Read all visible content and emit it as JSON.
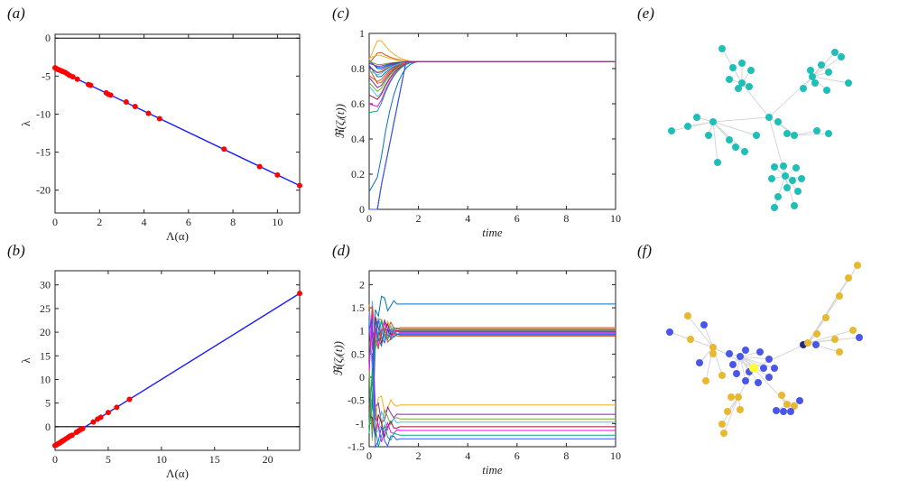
{
  "panel_labels": {
    "a": "(a)",
    "b": "(b)",
    "c": "(c)",
    "d": "(d)",
    "e": "(e)",
    "f": "(f)"
  },
  "colors": {
    "line": "#1a1aff",
    "points": "#ff0000",
    "zero_line": "#000000",
    "network_e": "#1fbfb8",
    "network_f_blue": "#4a56e6",
    "network_f_yellow": "#e8b830",
    "network_f_dark": "#232a8c",
    "network_f_hub": "#ffff33",
    "edges": "#d6d6d6"
  },
  "chart_data": [
    {
      "id": "a",
      "type": "scatter",
      "xlabel": "Λ(α)",
      "ylabel": "λ",
      "xlim": [
        0,
        11
      ],
      "ylim": [
        -23,
        0.5
      ],
      "xticks": [
        0,
        2,
        4,
        6,
        8,
        10
      ],
      "yticks": [
        0,
        -5,
        -10,
        -15,
        -20
      ],
      "xtick_labels": [
        "0",
        "2",
        "4",
        "6",
        "8",
        "10"
      ],
      "ytick_labels": [
        "0",
        "-5",
        "-10",
        "-15",
        "-20"
      ],
      "fit_line": {
        "x": [
          0,
          11
        ],
        "y": [
          -4.0,
          -19.4
        ]
      },
      "x": [
        0,
        0.05,
        0.1,
        0.15,
        0.2,
        0.28,
        0.35,
        0.45,
        0.55,
        0.65,
        0.8,
        1.0,
        1.5,
        1.6,
        2.3,
        2.4,
        2.5,
        3.2,
        3.6,
        4.2,
        4.7,
        7.6,
        9.2,
        10.0,
        11.0
      ],
      "y": [
        -3.9,
        -4.0,
        -4.1,
        -4.15,
        -4.2,
        -4.3,
        -4.4,
        -4.5,
        -4.7,
        -4.9,
        -5.1,
        -5.4,
        -6.1,
        -6.2,
        -7.2,
        -7.4,
        -7.5,
        -8.4,
        -9.0,
        -9.9,
        -10.6,
        -14.6,
        -16.9,
        -18.0,
        -19.4
      ]
    },
    {
      "id": "b",
      "type": "scatter",
      "xlabel": "Λ(α)",
      "ylabel": "λ",
      "xlim": [
        0,
        23
      ],
      "ylim": [
        -5,
        33
      ],
      "xticks": [
        0,
        5,
        10,
        15,
        20
      ],
      "yticks": [
        -5,
        0,
        5,
        10,
        15,
        20,
        25,
        30
      ],
      "xtick_labels": [
        "0",
        "5",
        "10",
        "15",
        "20"
      ],
      "ytick_labels": [
        "",
        "0",
        "5",
        "10",
        "15",
        "20",
        "25",
        "30"
      ],
      "fit_line": {
        "x": [
          0,
          23
        ],
        "y": [
          -4.0,
          28.2
        ]
      },
      "zero_line": 0,
      "x": [
        0,
        0.1,
        0.2,
        0.3,
        0.4,
        0.5,
        0.6,
        0.7,
        0.8,
        1.0,
        1.2,
        1.4,
        1.6,
        2.0,
        2.2,
        2.4,
        2.6,
        3.6,
        4.0,
        4.3,
        5.0,
        5.8,
        7.0,
        23.0
      ],
      "y": [
        -4.0,
        -3.9,
        -3.7,
        -3.6,
        -3.5,
        -3.3,
        -3.2,
        -3.0,
        -2.9,
        -2.6,
        -2.3,
        -2.0,
        -1.8,
        -1.2,
        -0.9,
        -0.6,
        -0.4,
        1.0,
        1.6,
        2.0,
        3.0,
        4.1,
        5.8,
        28.2
      ]
    },
    {
      "id": "c",
      "type": "line",
      "xlabel": "time",
      "ylabel": "ℜ(ζⱼ(t))",
      "xlim": [
        0,
        10
      ],
      "ylim": [
        0,
        1
      ],
      "xticks": [
        0,
        2,
        4,
        6,
        8,
        10
      ],
      "yticks": [
        0,
        0.2,
        0.4,
        0.6,
        0.8,
        1
      ],
      "xtick_labels": [
        "0",
        "2",
        "4",
        "6",
        "8",
        "10"
      ],
      "ytick_labels": [
        "0",
        "0.2",
        "0.4",
        "0.6",
        "0.8",
        "1"
      ],
      "steady_value": 0.84,
      "series_start": [
        0.82,
        0.8,
        0.78,
        0.75,
        0.72,
        0.7,
        0.65,
        0.6,
        0.55,
        0.84,
        0.85,
        0.83,
        0.86,
        0.81,
        0.84,
        0.79,
        0.0,
        0.0,
        0.0,
        0.0,
        0.1,
        0.76,
        0.85,
        0.83
      ],
      "series_dip": [
        0.74,
        0.7,
        0.78,
        0.68,
        0.66,
        0.63,
        0.62,
        0.58,
        0.56,
        0.8,
        0.79,
        0.9,
        0.88,
        0.77,
        0.82,
        0.76,
        0.0,
        0.0,
        0.0,
        0.0,
        0.2,
        0.72,
        0.98,
        0.81
      ]
    },
    {
      "id": "d",
      "type": "line",
      "xlabel": "time",
      "ylabel": "ℜ(ζⱼ(t))",
      "xlim": [
        0,
        10
      ],
      "ylim": [
        -1.5,
        2.3
      ],
      "xticks": [
        0,
        2,
        4,
        6,
        8,
        10
      ],
      "yticks": [
        -1.5,
        -1,
        -0.5,
        0,
        0.5,
        1,
        1.5,
        2
      ],
      "xtick_labels": [
        "0",
        "2",
        "4",
        "6",
        "8",
        "10"
      ],
      "ytick_labels": [
        "-1.5",
        "-1",
        "-0.5",
        "0",
        "0.5",
        "1",
        "1.5",
        "2"
      ],
      "series_end": [
        1.58,
        1.07,
        1.05,
        1.03,
        1.01,
        1.0,
        0.99,
        0.97,
        0.95,
        0.93,
        0.91,
        0.89,
        -0.6,
        -0.8,
        -0.9,
        -0.97,
        -1.07,
        -1.15,
        -1.25,
        -1.33
      ]
    }
  ]
}
